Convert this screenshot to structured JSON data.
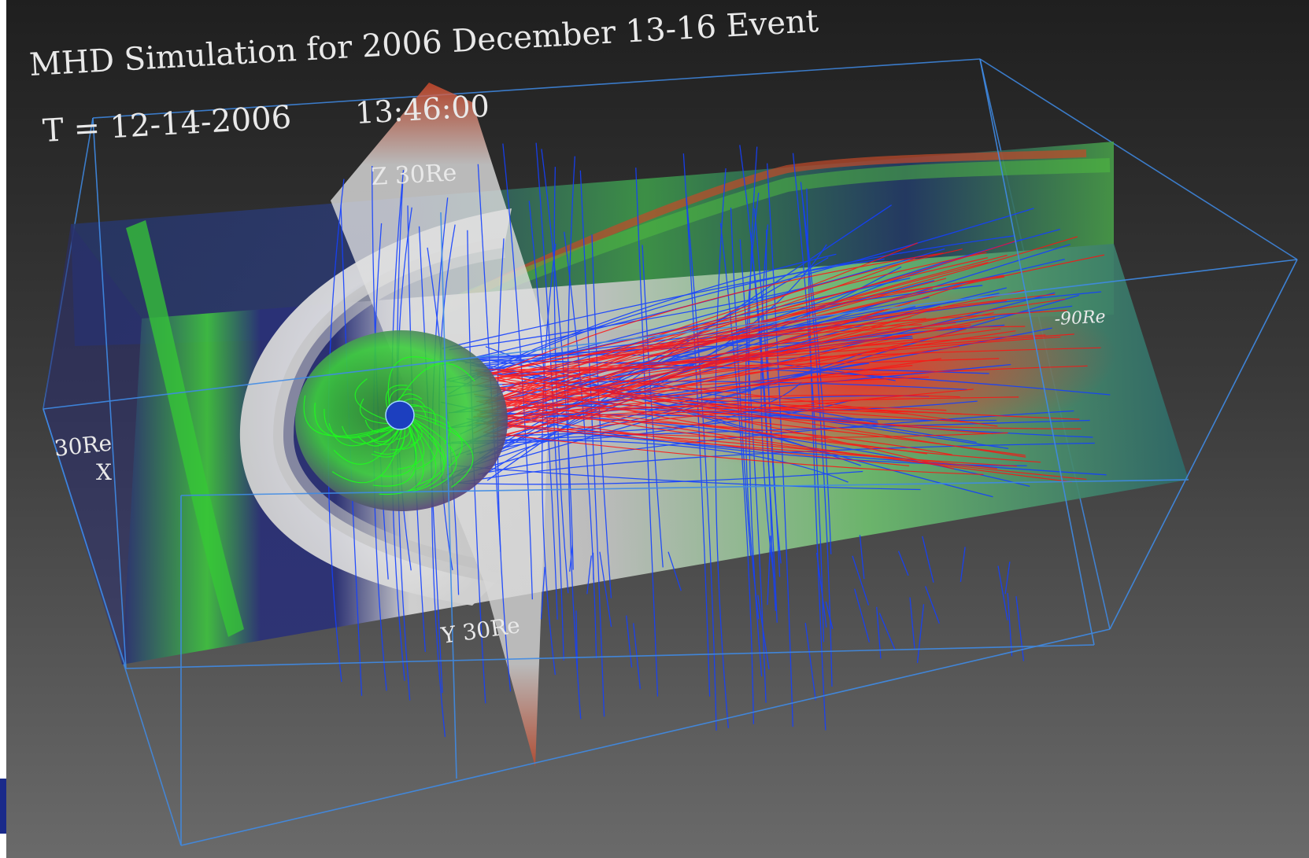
{
  "title": "MHD Simulation for 2006 December 13-16 Event",
  "timestamp": {
    "date": "T = 12-14-2006",
    "time": "13:46:00"
  },
  "axes": {
    "z_label": "Z 30Re",
    "x_value": "30Re",
    "x_name": "X",
    "y_label": "Y 30Re",
    "tail_label": "-90Re"
  },
  "colors": {
    "background_top": "#1f1f1f",
    "background_bottom": "#6a6a6a",
    "box_edge": "#3f8be6",
    "field_line_blue": "#1440ff",
    "field_line_red": "#ff1212",
    "field_line_green": "#1cff1c",
    "plane_green": "#3fc43f",
    "plane_navy": "#262a70",
    "shock_white": "#dcdcdc"
  },
  "elements": {
    "earth_icon": "globe-icon",
    "blue_lines": "blue-field-lines",
    "red_lines": "red-field-lines",
    "green_lines": "green-field-lines"
  }
}
